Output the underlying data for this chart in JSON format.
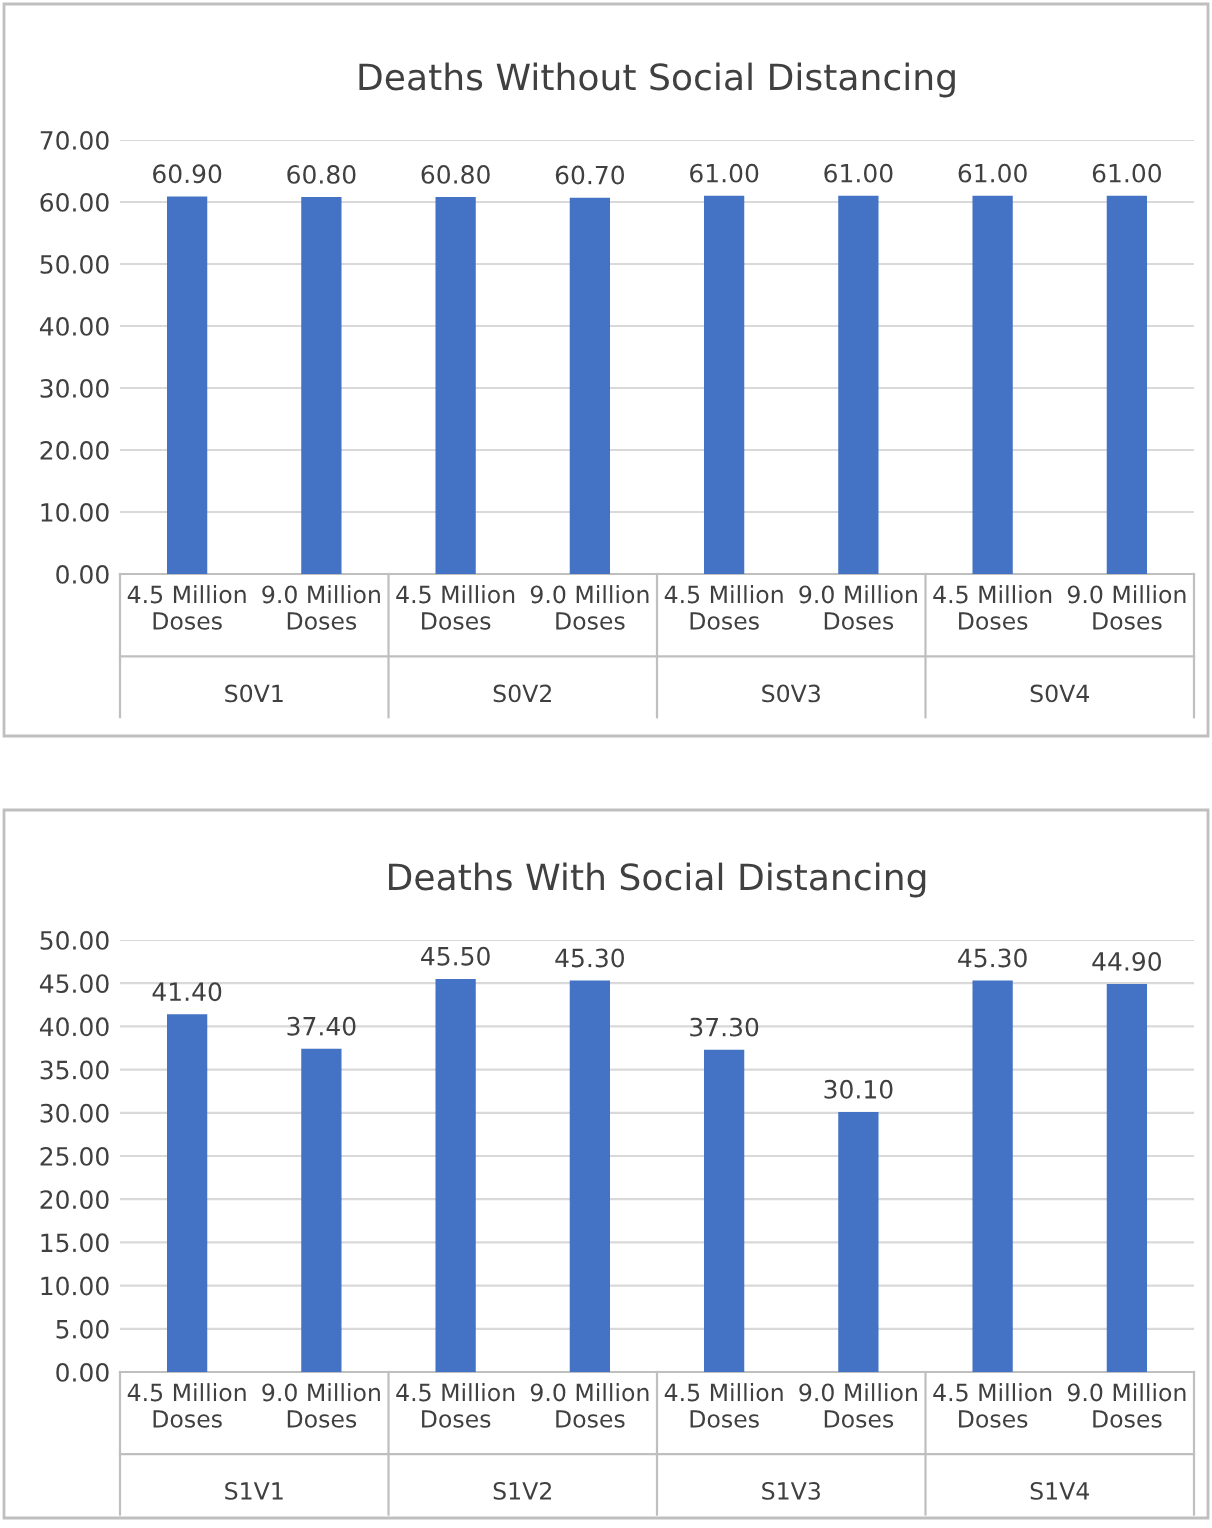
{
  "chart_data": [
    {
      "type": "bar",
      "title": "Deaths Without Social Distancing",
      "categories": [
        "4.5 Million Doses",
        "9.0 Million Doses",
        "4.5 Million Doses",
        "9.0 Million Doses",
        "4.5 Million Doses",
        "9.0 Million Doses",
        "4.5 Million Doses",
        "9.0 Million Doses"
      ],
      "values": [
        60.9,
        60.8,
        60.8,
        60.7,
        61.0,
        61.0,
        61.0,
        61.0
      ],
      "value_labels": [
        "60.90",
        "60.80",
        "60.80",
        "60.70",
        "61.00",
        "61.00",
        "61.00",
        "61.00"
      ],
      "color": "#4472c4",
      "annotations": [
        "S0V1",
        "S0V2",
        "S0V3",
        "S0V4"
      ],
      "ylim": [
        0,
        70
      ],
      "yticks": [
        {
          "value": 0,
          "label": "0.00"
        },
        {
          "value": 10,
          "label": "10.00"
        },
        {
          "value": 20,
          "label": "20.00"
        },
        {
          "value": 30,
          "label": "30.00"
        },
        {
          "value": 40,
          "label": "40.00"
        },
        {
          "value": 50,
          "label": "50.00"
        },
        {
          "value": 60,
          "label": "60.00"
        },
        {
          "value": 70,
          "label": "70.00"
        }
      ],
      "grid": "y",
      "legend": false
    },
    {
      "type": "bar",
      "title": "Deaths With Social Distancing",
      "categories": [
        "4.5 Million Doses",
        "9.0 Million Doses",
        "4.5 Million Doses",
        "9.0 Million Doses",
        "4.5 Million Doses",
        "9.0 Million Doses",
        "4.5 Million Doses",
        "9.0 Million Doses"
      ],
      "values": [
        41.4,
        37.4,
        45.5,
        45.3,
        37.3,
        30.1,
        45.3,
        44.9
      ],
      "value_labels": [
        "41.40",
        "37.40",
        "45.50",
        "45.30",
        "37.30",
        "30.10",
        "45.30",
        "44.90"
      ],
      "color": "#4472c4",
      "annotations": [
        "S1V1",
        "S1V2",
        "S1V3",
        "S1V4"
      ],
      "ylim": [
        0,
        50
      ],
      "yticks": [
        {
          "value": 0,
          "label": "0.00"
        },
        {
          "value": 5,
          "label": "5.00"
        },
        {
          "value": 10,
          "label": "10.00"
        },
        {
          "value": 15,
          "label": "15.00"
        },
        {
          "value": 20,
          "label": "20.00"
        },
        {
          "value": 25,
          "label": "25.00"
        },
        {
          "value": 30,
          "label": "30.00"
        },
        {
          "value": 35,
          "label": "35.00"
        },
        {
          "value": 40,
          "label": "40.00"
        },
        {
          "value": 45,
          "label": "45.00"
        },
        {
          "value": 50,
          "label": "50.00"
        }
      ],
      "grid": "y",
      "legend": false
    }
  ]
}
